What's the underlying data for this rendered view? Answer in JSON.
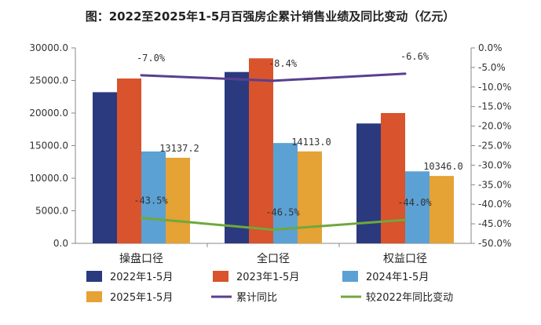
{
  "chart_data": {
    "type": "bar",
    "title": "图：2022至2025年1-5月百强房企累计销售业绩及同比变动（亿元）",
    "categories": [
      "操盘口径",
      "全口径",
      "权益口径"
    ],
    "series": [
      {
        "name": "2022年1-5月",
        "type": "bar",
        "axis": "left",
        "color": "#2b3a7e",
        "values": [
          23200,
          26300,
          18400
        ]
      },
      {
        "name": "2023年1-5月",
        "type": "bar",
        "axis": "left",
        "color": "#d9532c",
        "values": [
          25300,
          28400,
          20000
        ]
      },
      {
        "name": "2024年1-5月",
        "type": "bar",
        "axis": "left",
        "color": "#5ba1d4",
        "values": [
          14100,
          15400,
          11050
        ]
      },
      {
        "name": "2025年1-5月",
        "type": "bar",
        "axis": "left",
        "color": "#e5a235",
        "values": [
          13137.2,
          14113.0,
          10346.0
        ]
      },
      {
        "name": "累计同比",
        "type": "line",
        "axis": "right",
        "color": "#5a3f8f",
        "values": [
          -7.0,
          -8.4,
          -6.6
        ]
      },
      {
        "name": "较2022年同比变动",
        "type": "line",
        "axis": "right",
        "color": "#6fa83c",
        "values": [
          -43.5,
          -46.5,
          -44.0
        ]
      }
    ],
    "bar_labels": [
      "13137.2",
      "14113.0",
      "10346.0"
    ],
    "line_labels": {
      "累计同比": [
        "-7.0%",
        "-8.4%",
        "-6.6%"
      ],
      "较2022年同比变动": [
        "-43.5%",
        "-46.5%",
        "-44.0%"
      ]
    },
    "ylim": [
      0,
      30000
    ],
    "y_ticks": [
      "0.0",
      "5000.0",
      "10000.0",
      "15000.0",
      "20000.0",
      "25000.0",
      "30000.0"
    ],
    "y2lim": [
      -50,
      0
    ],
    "y2_ticks": [
      "-50.0%",
      "-45.0%",
      "-40.0%",
      "-35.0%",
      "-30.0%",
      "-25.0%",
      "-20.0%",
      "-15.0%",
      "-10.0%",
      "-5.0%",
      "0.0%"
    ],
    "legend_position": "bottom",
    "grid": false
  }
}
